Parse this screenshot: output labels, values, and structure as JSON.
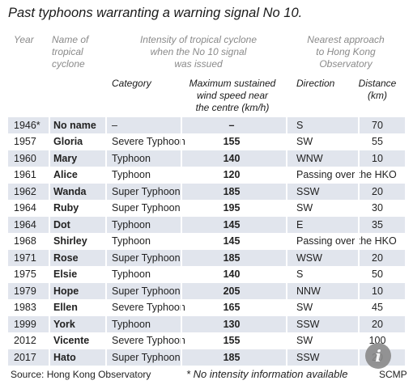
{
  "title": "Past typhoons warranting a warning signal No 10.",
  "headers": {
    "year": "Year",
    "name": [
      "Name of",
      "tropical",
      "cyclone"
    ],
    "intensity": [
      "Intensity of tropical cyclone",
      "when the No 10 signal",
      "was issued"
    ],
    "approach": [
      "Nearest approach",
      "to Hong Kong",
      "Observatory"
    ],
    "category": "Category",
    "wind": [
      "Maximum sustained",
      "wind speed near",
      "the centre (km/h)"
    ],
    "direction": "Direction",
    "distance": [
      "Distance",
      "(km)"
    ]
  },
  "rows": [
    {
      "year": "1946*",
      "name": "No name",
      "category": "–",
      "wind": "–",
      "direction": "S",
      "distance": "70"
    },
    {
      "year": "1957",
      "name": "Gloria",
      "category": "Severe Typhoon",
      "wind": "155",
      "direction": "SW",
      "distance": "55"
    },
    {
      "year": "1960",
      "name": "Mary",
      "category": "Typhoon",
      "wind": "140",
      "direction": "WNW",
      "distance": "10"
    },
    {
      "year": "1961",
      "name": "Alice",
      "category": "Typhoon",
      "wind": "120",
      "direction": "Passing over the HKO",
      "distance": ""
    },
    {
      "year": "1962",
      "name": "Wanda",
      "category": "Super Typhoon",
      "wind": "185",
      "direction": "SSW",
      "distance": "20"
    },
    {
      "year": "1964",
      "name": "Ruby",
      "category": "Super Typhoon",
      "wind": "195",
      "direction": "SW",
      "distance": "30"
    },
    {
      "year": "1964",
      "name": "Dot",
      "category": "Typhoon",
      "wind": "145",
      "direction": "E",
      "distance": "35"
    },
    {
      "year": "1968",
      "name": "Shirley",
      "category": "Typhoon",
      "wind": "145",
      "direction": "Passing over the HKO",
      "distance": ""
    },
    {
      "year": "1971",
      "name": "Rose",
      "category": "Super Typhoon",
      "wind": "185",
      "direction": "WSW",
      "distance": "20"
    },
    {
      "year": "1975",
      "name": "Elsie",
      "category": "Typhoon",
      "wind": "140",
      "direction": "S",
      "distance": "50"
    },
    {
      "year": "1979",
      "name": "Hope",
      "category": "Super Typhoon",
      "wind": "205",
      "direction": "NNW",
      "distance": "10"
    },
    {
      "year": "1983",
      "name": "Ellen",
      "category": "Severe Typhoon",
      "wind": "165",
      "direction": "SW",
      "distance": "45"
    },
    {
      "year": "1999",
      "name": "York",
      "category": "Typhoon",
      "wind": "130",
      "direction": "SSW",
      "distance": "20"
    },
    {
      "year": "2012",
      "name": "Vicente",
      "category": "Severe Typhoon",
      "wind": "155",
      "direction": "SW",
      "distance": "100"
    },
    {
      "year": "2017",
      "name": "Hato",
      "category": "Super Typhoon",
      "wind": "185",
      "direction": "SSW",
      "distance": "20"
    }
  ],
  "footer": {
    "source": "Source: Hong Kong Observatory",
    "note": "* No intensity information available",
    "credit": "SCMP"
  },
  "info_icon": "info-icon",
  "info_glyph": "i",
  "colors": {
    "shade": "#e1e5ed",
    "header_grey": "#8a8a8a"
  }
}
